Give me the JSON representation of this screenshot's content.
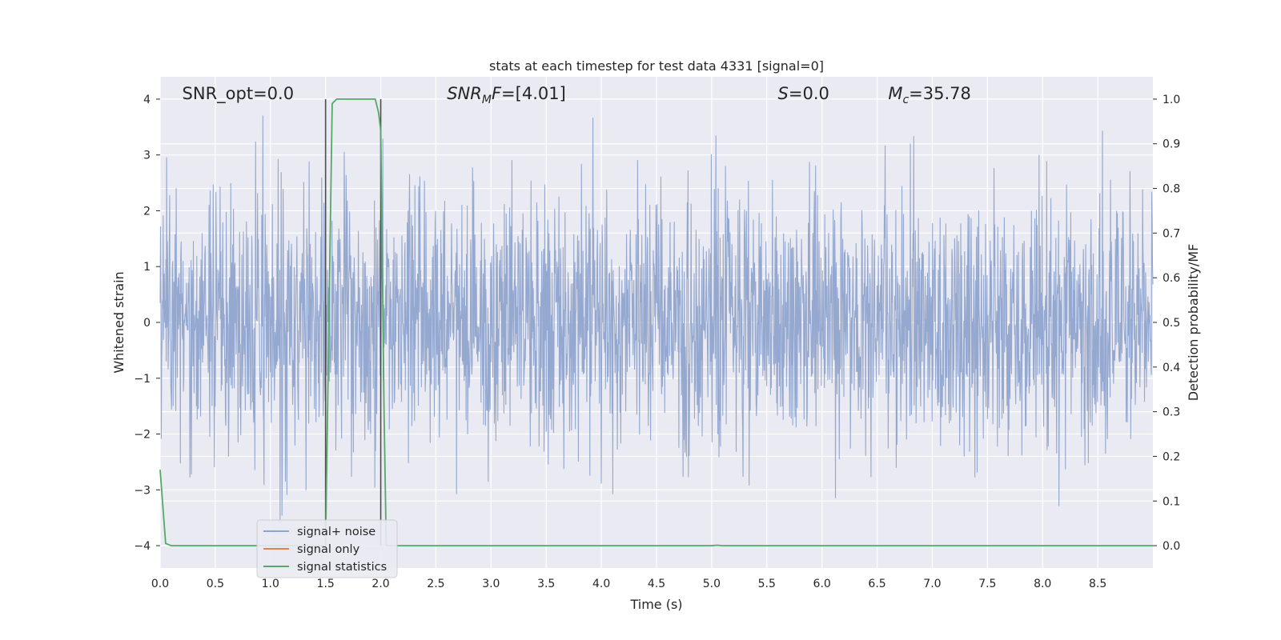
{
  "chart_data": {
    "type": "line",
    "title": "stats at each timestep for test data 4331 [signal=0]",
    "xlabel": "Time (s)",
    "ylabel": "Whitened strain",
    "y2label": "Detection probability/MF",
    "xlim": [
      0,
      9.0
    ],
    "ylim": [
      -4.4,
      4.4
    ],
    "y2lim": [
      -0.05,
      1.05
    ],
    "xticks": [
      "0.0",
      "0.5",
      "1.0",
      "1.5",
      "2.0",
      "2.5",
      "3.0",
      "3.5",
      "4.0",
      "4.5",
      "5.0",
      "5.5",
      "6.0",
      "6.5",
      "7.0",
      "7.5",
      "8.0",
      "8.5"
    ],
    "yticks": [
      "4",
      "3",
      "2",
      "1",
      "0",
      "−1",
      "−2",
      "−3",
      "−4"
    ],
    "y2ticks": [
      "1.0",
      "0.9",
      "0.8",
      "0.7",
      "0.6",
      "0.5",
      "0.4",
      "0.3",
      "0.2",
      "0.1",
      "0.0"
    ],
    "grid": true,
    "legend_position": "lower-left",
    "annotations": [
      {
        "text": "SNR_opt=0.0",
        "x": 0.2
      },
      {
        "text": "SNR",
        "sub": "M",
        "rest": "F=[4.01]",
        "x": 2.6
      },
      {
        "text": "S",
        "rest": "=0.0",
        "x": 5.6
      },
      {
        "text": "M",
        "sub": "c",
        "rest": "=35.78",
        "x": 6.6
      }
    ],
    "series": [
      {
        "name": "signal+ noise",
        "color": "#8fa4cd",
        "description_values": "whitened strain noise, approx. Gaussian, range about -4 to 4"
      },
      {
        "name": "signal only",
        "color": "#dd8452",
        "values": []
      },
      {
        "name": "signal statistics",
        "color": "#55a868",
        "x": [
          0.0,
          0.05,
          0.1,
          0.15,
          1.5,
          1.53,
          1.56,
          1.6,
          1.7,
          1.8,
          1.9,
          1.95,
          1.98,
          2.0,
          2.03,
          2.05,
          2.1,
          5.0,
          5.05,
          5.1,
          9.0
        ],
        "values": [
          0.17,
          0.005,
          0.0,
          0.0,
          0.0,
          0.5,
          0.99,
          1.0,
          1.0,
          1.0,
          1.0,
          1.0,
          0.97,
          0.93,
          0.3,
          0.0,
          0.0,
          0.0,
          0.001,
          0.0,
          0.0
        ]
      }
    ],
    "vertical_markers": [
      1.5,
      2.0
    ],
    "colors": {
      "plot_bg": "#eaeaf2",
      "grid": "#ffffff",
      "marker_line": "#4d4d4d"
    }
  }
}
